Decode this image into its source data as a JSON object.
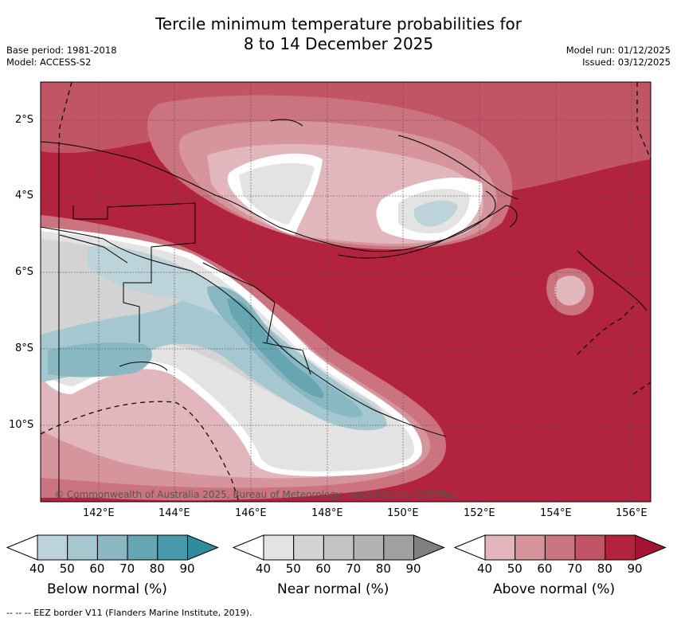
{
  "header": {
    "title_line1": "Tercile minimum temperature probabilities for",
    "title_line2": "8 to 14 December 2025",
    "base_period": "Base period: 1981-2018",
    "model": "Model: ACCESS-S2",
    "model_run": "Model run: 01/12/2025",
    "issued": "Issued: 03/12/2025"
  },
  "map": {
    "lat_labels": [
      "2°S",
      "4°S",
      "6°S",
      "8°S",
      "10°S"
    ],
    "lon_labels": [
      "142°E",
      "144°E",
      "146°E",
      "148°E",
      "150°E",
      "152°E",
      "154°E",
      "156°E"
    ],
    "credit": "© Commonwealth of Australia 2025, Bureau of Meteorology, supported by COSPPac"
  },
  "colorbars": [
    {
      "label": "Below normal (%)",
      "ticks": [
        "40",
        "50",
        "60",
        "70",
        "80",
        "90"
      ],
      "colors": [
        "#ffffff",
        "#bdd3da",
        "#a5c7cf",
        "#89b8c3",
        "#66a6b3",
        "#4599a8",
        "#2e8d9d"
      ]
    },
    {
      "label": "Near normal (%)",
      "ticks": [
        "40",
        "50",
        "60",
        "70",
        "80",
        "90"
      ],
      "colors": [
        "#ffffff",
        "#e3e3e3",
        "#d3d3d3",
        "#c4c4c4",
        "#b3b3b3",
        "#a0a0a0",
        "#7f7f7f"
      ]
    },
    {
      "label": "Above normal (%)",
      "ticks": [
        "40",
        "50",
        "60",
        "70",
        "80",
        "90"
      ],
      "colors": [
        "#ffffff",
        "#e2b6bd",
        "#d6949c",
        "#cb747f",
        "#c25565",
        "#b2243d",
        "#a31433"
      ]
    }
  ],
  "footnote": "--  --  -- EEZ border V11 (Flanders Marine Institute, 2019).",
  "palette": {
    "above80": "#b2243d",
    "above70": "#c25565",
    "above60": "#cb747f",
    "above50": "#d6949c",
    "above40": "#e2b6bd",
    "near50": "#e3e3e3",
    "near60": "#d3d3d3",
    "below50": "#bdd3da",
    "below60": "#a5c7cf",
    "below70": "#89b8c3",
    "below80": "#66a6b3"
  }
}
